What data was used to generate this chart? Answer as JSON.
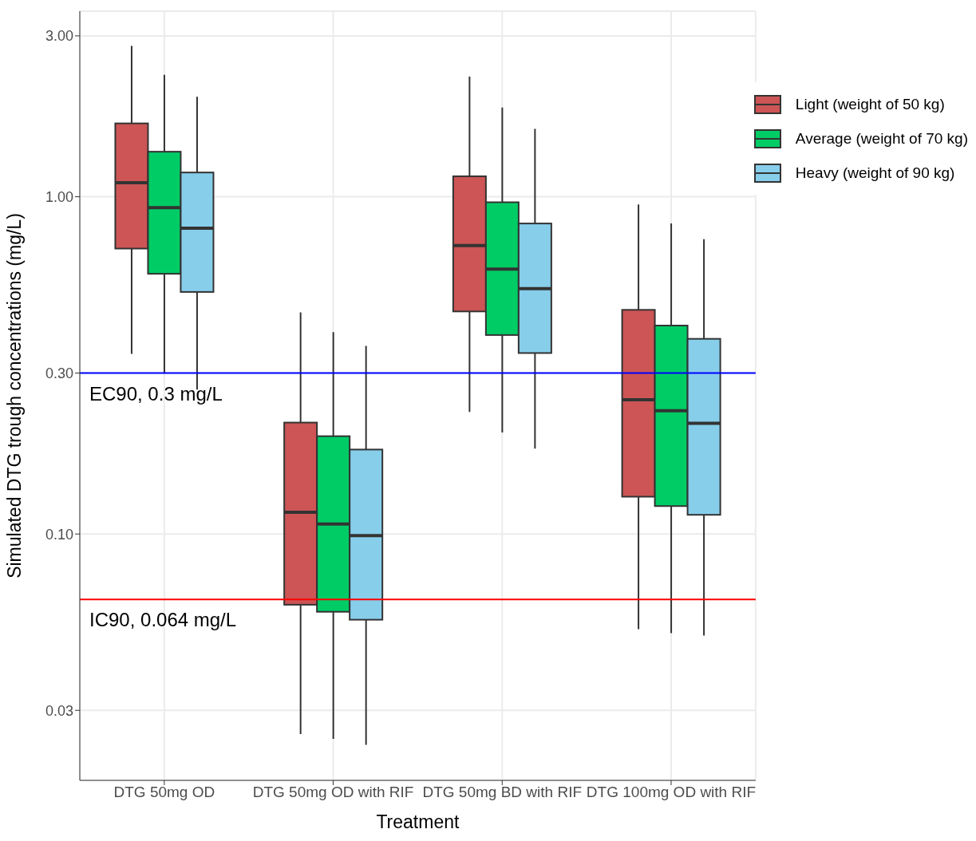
{
  "chart_data": {
    "type": "box",
    "xlabel": "Treatment",
    "ylabel": "Simulated DTG trough concentrations (mg/L)",
    "categories": [
      "DTG 50mg OD",
      "DTG 50mg OD with RIF",
      "DTG 50mg BD with RIF",
      "DTG 100mg OD with RIF"
    ],
    "log": true,
    "ylim": [
      0.0186,
      3.55
    ],
    "yticks": [
      {
        "value": 0.03,
        "label": "0.03"
      },
      {
        "value": 0.1,
        "label": "0.10"
      },
      {
        "value": 0.3,
        "label": "0.30"
      },
      {
        "value": 1,
        "label": "1.00"
      },
      {
        "value": 3,
        "label": "3.00"
      }
    ],
    "grid": true,
    "legend": "top right",
    "series": [
      {
        "name": "Light (weight of 50 kg)",
        "color": "#cd5555",
        "boxes": [
          {
            "low": 0.342,
            "q1": 0.702,
            "median": 1.1,
            "q3": 1.65,
            "high": 2.8
          },
          {
            "low": 0.0255,
            "q1": 0.0617,
            "median": 0.116,
            "q3": 0.214,
            "high": 0.454
          },
          {
            "low": 0.23,
            "q1": 0.457,
            "median": 0.717,
            "q3": 1.15,
            "high": 2.27
          },
          {
            "low": 0.0522,
            "q1": 0.129,
            "median": 0.25,
            "q3": 0.462,
            "high": 0.948
          }
        ]
      },
      {
        "name": "Average (weight of 70 kg)",
        "color": "#00cc66",
        "boxes": [
          {
            "low": 0.299,
            "q1": 0.591,
            "median": 0.928,
            "q3": 1.36,
            "high": 2.3
          },
          {
            "low": 0.0247,
            "q1": 0.0588,
            "median": 0.107,
            "q3": 0.195,
            "high": 0.397
          },
          {
            "low": 0.2,
            "q1": 0.389,
            "median": 0.61,
            "q3": 0.963,
            "high": 1.84
          },
          {
            "low": 0.0508,
            "q1": 0.121,
            "median": 0.232,
            "q3": 0.415,
            "high": 0.833
          }
        ]
      },
      {
        "name": "Heavy (weight of 90 kg)",
        "color": "#87ceeb",
        "boxes": [
          {
            "low": 0.268,
            "q1": 0.522,
            "median": 0.807,
            "q3": 1.18,
            "high": 1.98
          },
          {
            "low": 0.0237,
            "q1": 0.0557,
            "median": 0.0989,
            "q3": 0.178,
            "high": 0.361
          },
          {
            "low": 0.179,
            "q1": 0.344,
            "median": 0.534,
            "q3": 0.833,
            "high": 1.59
          },
          {
            "low": 0.05,
            "q1": 0.114,
            "median": 0.213,
            "q3": 0.379,
            "high": 0.748
          }
        ]
      }
    ],
    "ref_lines": [
      {
        "axis": "y",
        "value": 0.3,
        "label": "EC90, 0.3 mg/L",
        "color": "#0000ff"
      },
      {
        "axis": "y",
        "value": 0.064,
        "label": "IC90, 0.064 mg/L",
        "color": "#ff0000"
      }
    ]
  }
}
